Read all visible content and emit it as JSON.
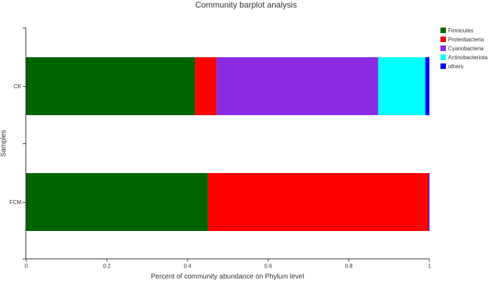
{
  "chart_data": {
    "type": "bar",
    "orientation": "horizontal",
    "stacked": true,
    "title": "Community barplot analysis",
    "xlabel": "Percent of community abundance on Phylum level",
    "ylabel": "Samples",
    "xlim": [
      0,
      1
    ],
    "xticks": [
      "0",
      "0.2",
      "0.4",
      "0.6",
      "0.8",
      "1"
    ],
    "categories": [
      "CK",
      "FCM"
    ],
    "series": [
      {
        "name": "Firmicutes",
        "color": "#006400",
        "values": [
          0.419,
          0.451
        ]
      },
      {
        "name": "Proteobacteria",
        "color": "#ff0000",
        "values": [
          0.053,
          0.547
        ]
      },
      {
        "name": "Cyanobacteria",
        "color": "#8a2be2",
        "values": [
          0.401,
          0.0
        ]
      },
      {
        "name": "Actinobacteriota",
        "color": "#00ffff",
        "values": [
          0.117,
          0.0
        ]
      },
      {
        "name": "others",
        "color": "#0000ff",
        "values": [
          0.01,
          0.002
        ]
      }
    ],
    "legend_position": "top-right",
    "grid": false
  }
}
